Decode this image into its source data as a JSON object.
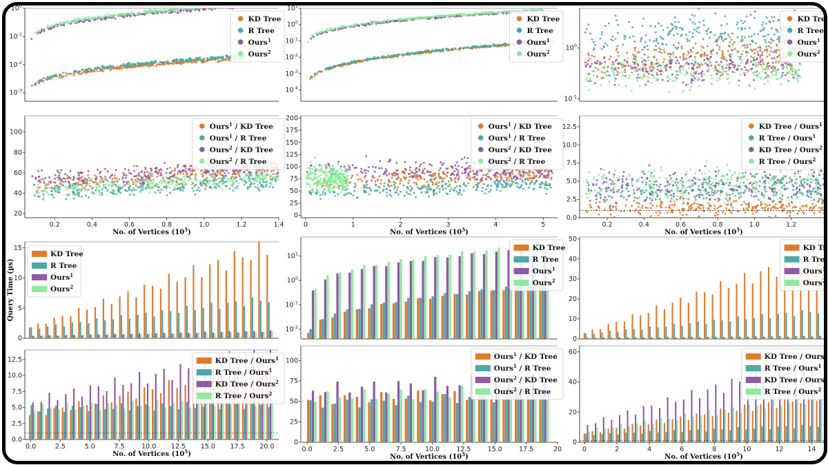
{
  "colors": {
    "kd": "#E07A2D",
    "r": "#4FA7A6",
    "o1": "#8E5BA6",
    "o2": "#8EEB9E"
  },
  "chart_data": [
    {
      "id": "p1",
      "type": "scatter",
      "scale": "log",
      "legend": [
        "KD Tree",
        "R Tree",
        "Ours^1",
        "Ours^2"
      ],
      "ylim": [
        0.0005,
        1
      ],
      "yticks": [
        {
          "v": 0.001,
          "t": "10",
          "e": "-3"
        },
        {
          "v": 0.01,
          "t": "10",
          "e": "-2"
        },
        {
          "v": 0.1,
          "t": "10",
          "e": "-1"
        },
        {
          "v": 1,
          "t": "10",
          "e": "0"
        }
      ],
      "xlim": [
        0.05,
        1.4
      ],
      "xticks": [],
      "xlabel": "",
      "series": [
        {
          "c": "kd",
          "x0": 0.08,
          "x1": 1.22,
          "y0": 0.0009,
          "y1": 0.017
        },
        {
          "c": "r",
          "x0": 0.08,
          "x1": 1.22,
          "y0": 0.001,
          "y1": 0.02
        },
        {
          "c": "o1",
          "x0": 0.08,
          "x1": 1.2,
          "y0": 0.05,
          "y1": 1.2
        },
        {
          "c": "o2",
          "x0": 0.08,
          "x1": 1.2,
          "y0": 0.06,
          "y1": 1.3
        }
      ]
    },
    {
      "id": "p2",
      "type": "scatter",
      "scale": "log",
      "legend": [
        "KD Tree",
        "R Tree",
        "Ours^1",
        "Ours^2"
      ],
      "ylim": [
        2e-05,
        10
      ],
      "yticks": [
        {
          "v": 0.0001,
          "t": "10",
          "e": "-4"
        },
        {
          "v": 0.001,
          "t": "10",
          "e": "-3"
        },
        {
          "v": 0.01,
          "t": "10",
          "e": "-2"
        },
        {
          "v": 0.1,
          "t": "10",
          "e": "-1"
        },
        {
          "v": 1,
          "t": "10",
          "e": "0"
        },
        {
          "v": 10,
          "t": "10",
          "e": "1"
        }
      ],
      "xlim": [
        -0.1,
        5.3
      ],
      "xticks": [],
      "xlabel": "",
      "series": [
        {
          "c": "kd",
          "x0": 0.02,
          "x1": 5.2,
          "y0": 0.0001,
          "y1": 0.09
        },
        {
          "c": "r",
          "x0": 0.02,
          "x1": 5.2,
          "y0": 0.00012,
          "y1": 0.1
        },
        {
          "c": "o1",
          "x0": 0.05,
          "x1": 5.0,
          "y0": 0.05,
          "y1": 7
        },
        {
          "c": "o2",
          "x0": 0.05,
          "x1": 5.0,
          "y0": 0.06,
          "y1": 8
        }
      ]
    },
    {
      "id": "p3",
      "type": "scatter",
      "scale": "log",
      "legend": [
        "KD Tree",
        "R Tree",
        "Ours^1",
        "Ours^2"
      ],
      "ylim": [
        0.09,
        6
      ],
      "yticks": [
        {
          "v": 0.1,
          "t": "10",
          "e": "-1"
        },
        {
          "v": 1,
          "t": "10",
          "e": "0"
        }
      ],
      "xlim": [
        0.05,
        1.4
      ],
      "xticks": [],
      "xlabel": "",
      "series": [
        {
          "c": "kd",
          "x0": 0.08,
          "x1": 1.25,
          "y0": 0.35,
          "y1": 0.8,
          "noise": 0.35
        },
        {
          "c": "r",
          "x0": 0.08,
          "x1": 1.25,
          "y0": 1,
          "y1": 2.2,
          "noise": 0.4
        },
        {
          "c": "o1",
          "x0": 0.08,
          "x1": 1.25,
          "y0": 0.3,
          "y1": 0.45,
          "noise": 0.3
        },
        {
          "c": "o2",
          "x0": 0.08,
          "x1": 1.25,
          "y0": 0.22,
          "y1": 0.4,
          "noise": 0.35
        }
      ]
    },
    {
      "id": "p4",
      "type": "scatter",
      "scale": "linear",
      "legend": [
        "Ours^1 / KD Tree",
        "Ours^1 / R Tree",
        "Ours^2 / KD Tree",
        "Ours^2 / R Tree"
      ],
      "ylim": [
        16,
        116
      ],
      "yticks": [
        {
          "v": 20,
          "t": "20"
        },
        {
          "v": 40,
          "t": "40"
        },
        {
          "v": 60,
          "t": "60"
        },
        {
          "v": 80,
          "t": "80"
        },
        {
          "v": 100,
          "t": "100"
        }
      ],
      "xlim": [
        0.04,
        1.4
      ],
      "xticks": [
        {
          "v": 0.2,
          "t": "0.2"
        },
        {
          "v": 0.4,
          "t": "0.4"
        },
        {
          "v": 0.6,
          "t": "0.6"
        },
        {
          "v": 0.8,
          "t": "0.8"
        },
        {
          "v": 1.0,
          "t": "1.0"
        },
        {
          "v": 1.2,
          "t": "1.2"
        },
        {
          "v": 1.4,
          "t": "1.4"
        }
      ],
      "xlabel": "No. of Vertices (10^5)",
      "series": [
        {
          "c": "kd",
          "x0": 0.08,
          "x1": 1.4,
          "y0": 48,
          "y1": 63,
          "noise": 9
        },
        {
          "c": "r",
          "x0": 0.08,
          "x1": 1.4,
          "y0": 40,
          "y1": 52,
          "noise": 8
        },
        {
          "c": "o1",
          "x0": 0.08,
          "x1": 1.4,
          "y0": 52,
          "y1": 66,
          "noise": 10
        },
        {
          "c": "o2",
          "x0": 0.08,
          "x1": 1.4,
          "y0": 43,
          "y1": 55,
          "noise": 8
        }
      ]
    },
    {
      "id": "p5",
      "type": "scatter",
      "scale": "linear",
      "legend": [
        "Ours^1 / KD Tree",
        "Ours^1 / R Tree",
        "Ours^2 / KD Tree",
        "Ours^2 / R Tree"
      ],
      "ylim": [
        -5,
        205
      ],
      "yticks": [
        {
          "v": 0,
          "t": "0"
        },
        {
          "v": 25,
          "t": "25"
        },
        {
          "v": 50,
          "t": "50"
        },
        {
          "v": 75,
          "t": "75"
        },
        {
          "v": 100,
          "t": "100"
        },
        {
          "v": 125,
          "t": "125"
        },
        {
          "v": 150,
          "t": "150"
        },
        {
          "v": 175,
          "t": "175"
        },
        {
          "v": 200,
          "t": "200"
        }
      ],
      "xlim": [
        -0.1,
        5.3
      ],
      "xticks": [
        {
          "v": 0,
          "t": "0"
        },
        {
          "v": 1,
          "t": "1"
        },
        {
          "v": 2,
          "t": "2"
        },
        {
          "v": 3,
          "t": "3"
        },
        {
          "v": 4,
          "t": "4"
        },
        {
          "v": 5,
          "t": "5"
        }
      ],
      "xlabel": "No. of Vertices (10^5)",
      "series": [
        {
          "c": "kd",
          "x0": 0.02,
          "x1": 5.2,
          "y0": 70,
          "y1": 85,
          "noise": 18
        },
        {
          "c": "r",
          "x0": 0.02,
          "x1": 5.2,
          "y0": 45,
          "y1": 65,
          "noise": 15
        },
        {
          "c": "o1",
          "x0": 0.02,
          "x1": 5.2,
          "y0": 95,
          "y1": 90,
          "noise": 22
        },
        {
          "c": "o2",
          "x0": 0.02,
          "x1": 0.9,
          "y0": 80,
          "y1": 70,
          "noise": 30
        }
      ]
    },
    {
      "id": "p6",
      "type": "scatter",
      "scale": "linear",
      "legend": [
        "KD Tree / Ours^1",
        "R Tree / Ours^1",
        "KD Tree / Ours^2",
        "R Tree /  Ours^2"
      ],
      "ylim": [
        0,
        14
      ],
      "yticks": [
        {
          "v": 0,
          "t": "0.0"
        },
        {
          "v": 2.5,
          "t": "2.5"
        },
        {
          "v": 5,
          "t": "5.0"
        },
        {
          "v": 7.5,
          "t": "7.5"
        },
        {
          "v": 10,
          "t": "10.0"
        },
        {
          "v": 12.5,
          "t": "12.5"
        }
      ],
      "xlim": [
        0.05,
        1.4
      ],
      "xticks": [
        {
          "v": 0.2,
          "t": "0.2"
        },
        {
          "v": 0.4,
          "t": "0.4"
        },
        {
          "v": 0.6,
          "t": "0.6"
        },
        {
          "v": 0.8,
          "t": "0.8"
        },
        {
          "v": 1.0,
          "t": "1.0"
        },
        {
          "v": 1.2,
          "t": "1.2"
        },
        {
          "v": 1.4,
          "t": "1.4"
        }
      ],
      "xlabel": "No. of Vertices (10^5)",
      "refline": 1,
      "series": [
        {
          "c": "kd",
          "x0": 0.08,
          "x1": 1.4,
          "y0": 1.2,
          "y1": 1.5,
          "noise": 1.2
        },
        {
          "c": "r",
          "x0": 0.08,
          "x1": 1.4,
          "y0": 3.5,
          "y1": 4.2,
          "noise": 2
        },
        {
          "c": "o1",
          "x0": 0.08,
          "x1": 1.4,
          "y0": 4,
          "y1": 4.5,
          "noise": 2.5
        },
        {
          "c": "o2",
          "x0": 0.08,
          "x1": 1.4,
          "y0": 4.5,
          "y1": 5,
          "noise": 2.5
        }
      ]
    },
    {
      "id": "p7",
      "type": "bar",
      "scale": "linear",
      "legend": [
        "KD Tree",
        "R Tree",
        "Ours^1",
        "Ours^2"
      ],
      "ylim": [
        0,
        16
      ],
      "yticks": [
        {
          "v": 0,
          "t": "0"
        },
        {
          "v": 5,
          "t": "5"
        },
        {
          "v": 10,
          "t": "10"
        },
        {
          "v": 15,
          "t": "15"
        }
      ],
      "ylabel": "Query Time (µs)",
      "xticks": [],
      "xlabel": "",
      "n": 30,
      "series": [
        {
          "c": "kd",
          "v0": 1.8,
          "v1": 15
        },
        {
          "c": "r",
          "v0": 1.6,
          "v1": 6.5
        },
        {
          "c": "o1",
          "v0": 0.4,
          "v1": 1.2
        },
        {
          "c": "o2",
          "v0": 0.4,
          "v1": 1.1
        }
      ]
    },
    {
      "id": "p8",
      "type": "bar",
      "scale": "log",
      "legend": [
        "KD Tree",
        "R Tree",
        "Ours^1",
        "Ours^2"
      ],
      "ylim": [
        0.004,
        60
      ],
      "yticks": [
        {
          "v": 0.01,
          "t": "10",
          "e": "-2"
        },
        {
          "v": 0.1,
          "t": "10",
          "e": "-1"
        },
        {
          "v": 1,
          "t": "10",
          "e": "0"
        },
        {
          "v": 10,
          "t": "10",
          "e": "1"
        }
      ],
      "xticks": [],
      "xlabel": "",
      "n": 20,
      "series": [
        {
          "c": "kd",
          "v0": 0.007,
          "v1": 0.6
        },
        {
          "c": "r",
          "v0": 0.009,
          "v1": 0.7
        },
        {
          "c": "o1",
          "v0": 0.4,
          "v1": 22
        },
        {
          "c": "o2",
          "v0": 0.5,
          "v1": 30
        }
      ]
    },
    {
      "id": "p9",
      "type": "bar",
      "scale": "linear",
      "legend": [
        "KD Tree",
        "R Tree",
        "Ours^1",
        "Ours^2"
      ],
      "ylim": [
        0,
        51
      ],
      "yticks": [
        {
          "v": 0,
          "t": "0"
        },
        {
          "v": 10,
          "t": "10"
        },
        {
          "v": 20,
          "t": "20"
        },
        {
          "v": 30,
          "t": "30"
        },
        {
          "v": 40,
          "t": "40"
        },
        {
          "v": 50,
          "t": "50"
        }
      ],
      "xticks": [],
      "xlabel": "",
      "n": 30,
      "series": [
        {
          "c": "kd",
          "v0": 3,
          "v1": 42
        },
        {
          "c": "r",
          "v0": 2.5,
          "v1": 14
        },
        {
          "c": "o1",
          "v0": 0.6,
          "v1": 1.4
        },
        {
          "c": "o2",
          "v0": 0.6,
          "v1": 1.3
        }
      ]
    },
    {
      "id": "p10",
      "type": "bar",
      "scale": "linear",
      "legend": [
        "KD Tree / Ours^1",
        "R Tree / Ours^1",
        "KD Tree / Ours^2",
        "R Tree /  Ours^2"
      ],
      "ylim": [
        0,
        14
      ],
      "yticks": [
        {
          "v": 0,
          "t": "0.0"
        },
        {
          "v": 2.5,
          "t": "2.5"
        },
        {
          "v": 5,
          "t": "5.0"
        },
        {
          "v": 7.5,
          "t": "7.5"
        },
        {
          "v": 10,
          "t": "10.0"
        },
        {
          "v": 12.5,
          "t": "12.5"
        }
      ],
      "xlim": [
        -0.5,
        21
      ],
      "xticks": [
        {
          "v": 0,
          "t": "0.0"
        },
        {
          "v": 2.5,
          "t": "2.5"
        },
        {
          "v": 5,
          "t": "5.0"
        },
        {
          "v": 7.5,
          "t": "7.5"
        },
        {
          "v": 10,
          "t": "10.0"
        },
        {
          "v": 12.5,
          "t": "12.5"
        },
        {
          "v": 15,
          "t": "15.0"
        },
        {
          "v": 17.5,
          "t": "17.5"
        },
        {
          "v": 20,
          "t": "20.0"
        }
      ],
      "xlabel": "No. of Vertices (10^5)",
      "n": 30,
      "refline": 1,
      "series": [
        {
          "c": "kd",
          "v0": 3.8,
          "v1": 11.5
        },
        {
          "c": "r",
          "v0": 4.8,
          "v1": 5.5
        },
        {
          "c": "o1",
          "v0": 6,
          "v1": 13.8
        },
        {
          "c": "o2",
          "v0": 5,
          "v1": 6
        }
      ]
    },
    {
      "id": "p11",
      "type": "bar",
      "scale": "linear",
      "legend": [
        "Ours^1 / KD Tree",
        "Ours^1 / R Tree",
        "Ours^2 / KD Tree",
        "Ours^2 / R Tree"
      ],
      "ylim": [
        0,
        118
      ],
      "yticks": [
        {
          "v": 0,
          "t": "0"
        },
        {
          "v": 25,
          "t": "25"
        },
        {
          "v": 50,
          "t": "50"
        },
        {
          "v": 75,
          "t": "75"
        },
        {
          "v": 100,
          "t": "100"
        }
      ],
      "xlim": [
        -0.5,
        20
      ],
      "xticks": [
        {
          "v": 0,
          "t": "0.0"
        },
        {
          "v": 2.5,
          "t": "2.5"
        },
        {
          "v": 5,
          "t": "5.0"
        },
        {
          "v": 7.5,
          "t": "7.5"
        },
        {
          "v": 10,
          "t": "10.0"
        },
        {
          "v": 12.5,
          "t": "12.5"
        },
        {
          "v": 15,
          "t": "15.0"
        },
        {
          "v": 17.5,
          "t": "17.5"
        },
        {
          "v": 20,
          "t": "20"
        }
      ],
      "xlabel": "No. of Vertices (10^5)",
      "n": 20,
      "series": [
        {
          "c": "kd",
          "v0": 52,
          "v1": 62
        },
        {
          "c": "r",
          "v0": 46,
          "v1": 58
        },
        {
          "c": "o1",
          "v0": 65,
          "v1": 78
        },
        {
          "c": "o2",
          "v0": 56,
          "v1": 65
        }
      ]
    },
    {
      "id": "p12",
      "type": "bar",
      "scale": "linear",
      "legend": [
        "KD Tree / Ours^1",
        "R Tree / Ours^1",
        "KD Tree / Ours^2",
        "R Tree / Ours^2"
      ],
      "ylim": [
        0,
        64
      ],
      "yticks": [
        {
          "v": 0,
          "t": "0"
        },
        {
          "v": 20,
          "t": "20"
        },
        {
          "v": 40,
          "t": "40"
        },
        {
          "v": 60,
          "t": "60"
        }
      ],
      "xlim": [
        -0.3,
        15
      ],
      "xticks": [
        {
          "v": 0,
          "t": "0"
        },
        {
          "v": 2,
          "t": "2"
        },
        {
          "v": 4,
          "t": "4"
        },
        {
          "v": 6,
          "t": "6"
        },
        {
          "v": 8,
          "t": "8"
        },
        {
          "v": 10,
          "t": "10"
        },
        {
          "v": 12,
          "t": "12"
        },
        {
          "v": 14,
          "t": "14"
        }
      ],
      "xlabel": "No. of Vertices (10^5)",
      "n": 30,
      "refline": 1,
      "series": [
        {
          "c": "kd",
          "v0": 6,
          "v1": 30
        },
        {
          "c": "r",
          "v0": 5,
          "v1": 11
        },
        {
          "c": "o1",
          "v0": 12,
          "v1": 55
        },
        {
          "c": "o2",
          "v0": 8,
          "v1": 30
        }
      ]
    }
  ]
}
